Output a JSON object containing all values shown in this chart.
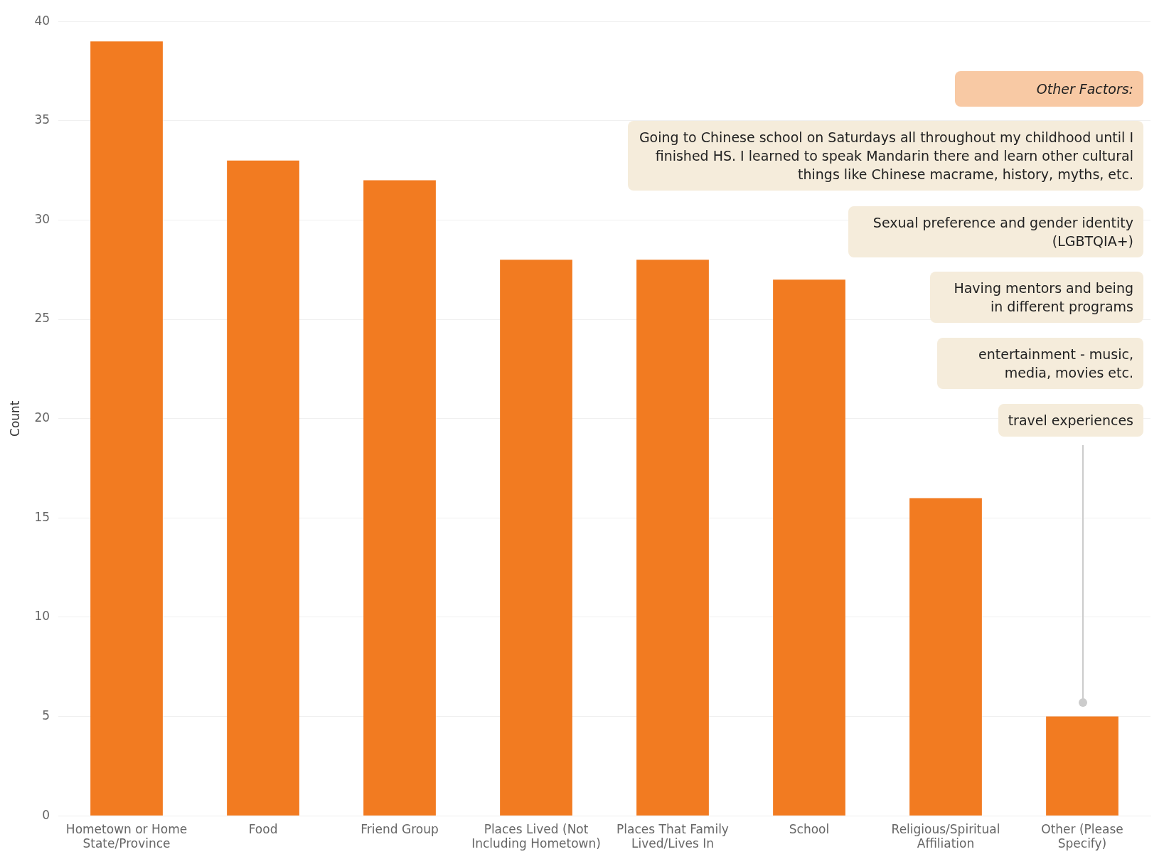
{
  "chart_data": {
    "type": "bar",
    "ylabel": "Count",
    "categories": [
      "Hometown or Home State/Province",
      "Food",
      "Friend Group",
      "Places Lived (Not Including Hometown)",
      "Places That Family Lived/Lives In",
      "School",
      "Religious/Spiritual Affiliation",
      "Other (Please Specify)"
    ],
    "values": [
      39,
      33,
      32,
      28,
      28,
      27,
      16,
      5
    ],
    "color": "#f27b21",
    "ylim": [
      0,
      40
    ],
    "yticks": [
      0,
      5,
      10,
      15,
      20,
      25,
      30,
      35,
      40
    ],
    "grid": "y",
    "annotations": [
      "Other Factors:",
      "Going to Chinese school on Saturdays all throughout my childhood until I finished HS. I learned to speak Mandarin there and learn other cultural things like Chinese macrame, history, myths, etc.",
      "Sexual preference and gender identity (LGBTQIA+)",
      "Having mentors and being in different programs",
      "entertainment - music, media, movies etc.",
      "travel experiences"
    ]
  }
}
